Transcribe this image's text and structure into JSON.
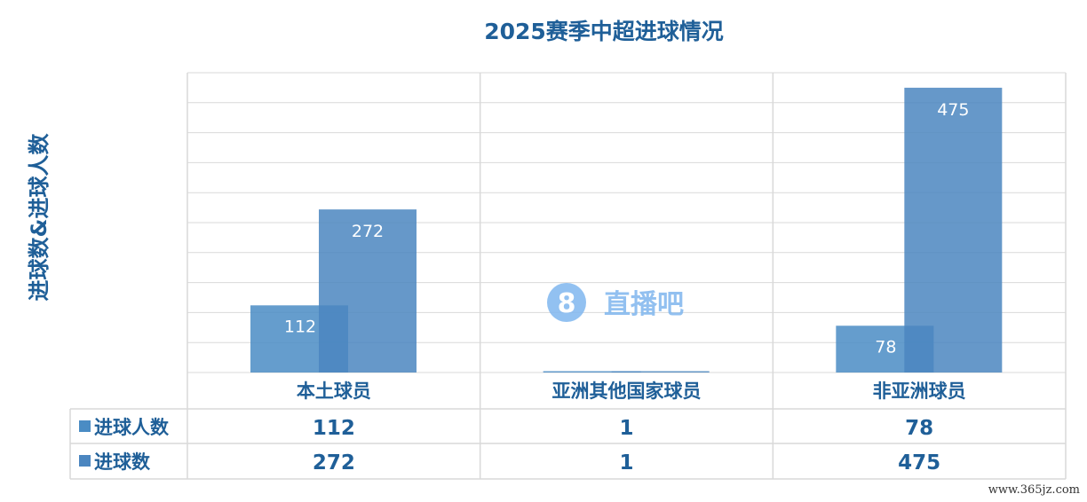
{
  "chart_data": {
    "type": "bar",
    "title": "2025赛季中超进球情况",
    "ylabel": "进球数&进球人数",
    "xlabel": "",
    "categories": [
      "本土球员",
      "亚洲其他国家球员",
      "非亚洲球员"
    ],
    "series": [
      {
        "name": "进球人数",
        "values": [
          112,
          1,
          78
        ],
        "color": "#4a8cc4"
      },
      {
        "name": "进球数",
        "values": [
          272,
          1,
          475
        ],
        "color": "#4b86c0"
      }
    ],
    "ylim": [
      0,
      500
    ],
    "ytick_step": 50,
    "grid": true,
    "legend": "data-table",
    "data_labels": true,
    "text_color": "#1f5f98"
  },
  "watermarks": {
    "logo": "8直播吧",
    "site": "www.365jz.com"
  }
}
